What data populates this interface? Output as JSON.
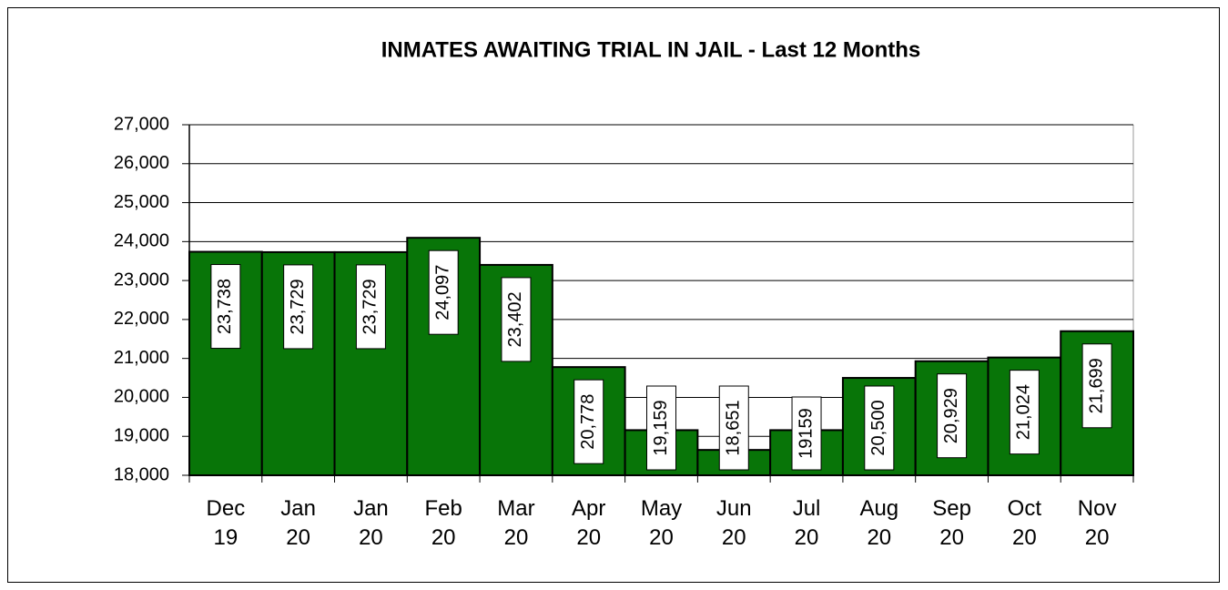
{
  "chart_data": {
    "type": "bar",
    "title": "INMATES AWAITING TRIAL IN JAIL - Last 12 Months",
    "categories": [
      "Dec 19",
      "Jan 20",
      "Jan 20",
      "Feb 20",
      "Mar 20",
      "Apr 20",
      "May 20",
      "Jun 20",
      "Jul 20",
      "Aug 20",
      "Sep 20",
      "Oct 20",
      "Nov 20"
    ],
    "values": [
      23738,
      23729,
      23729,
      24097,
      23402,
      20778,
      19159,
      18651,
      19159,
      20500,
      20929,
      21024,
      21699
    ],
    "value_labels": [
      "23,738",
      "23,729",
      "23,729",
      "24,097",
      "23,402",
      "20,778",
      "19,159",
      "18,651",
      "19159",
      "20,500",
      "20,929",
      "21,024",
      "21,699"
    ],
    "color": "#087508",
    "ylim": [
      18000,
      27000
    ],
    "yticks": [
      {
        "value": 18000,
        "label": "18,000"
      },
      {
        "value": 19000,
        "label": "19,000"
      },
      {
        "value": 20000,
        "label": "20,000"
      },
      {
        "value": 21000,
        "label": "21,000"
      },
      {
        "value": 22000,
        "label": "22,000"
      },
      {
        "value": 23000,
        "label": "23,000"
      },
      {
        "value": 24000,
        "label": "24,000"
      },
      {
        "value": 25000,
        "label": "25,000"
      },
      {
        "value": 26000,
        "label": "26,000"
      },
      {
        "value": 27000,
        "label": "27,000"
      }
    ],
    "grid": true
  }
}
